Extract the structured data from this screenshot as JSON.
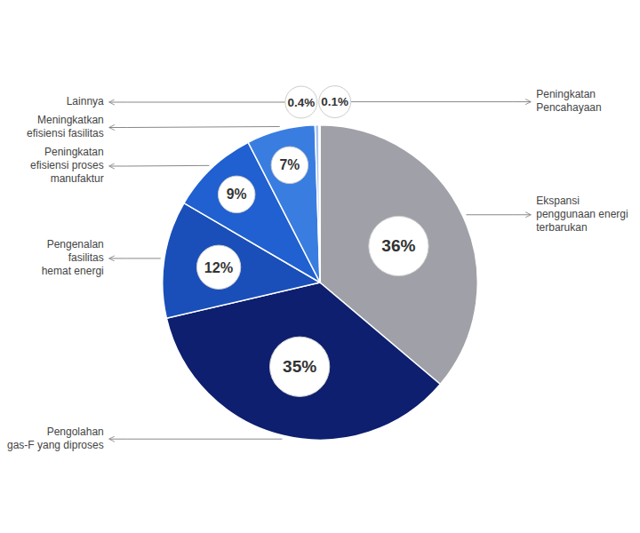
{
  "chart_data": {
    "type": "pie",
    "categories": [
      "Ekspansi\npenggunaan energi\nterbarukan",
      "Pengolahan\ngas-F yang diproses",
      "Pengenalan\nfasilitas\nhemat energi",
      "Peningkatan\nefisiensi proses\nmanufaktur",
      "Meningkatkan\nefisiensi fasilitas",
      "Lainnya",
      "Peningkatan\nPencahayaan"
    ],
    "values": [
      36,
      35,
      12,
      9,
      7,
      0.4,
      0.1
    ],
    "value_labels": [
      "36%",
      "35%",
      "12%",
      "9%",
      "7%",
      "0.4%",
      "0.1%"
    ],
    "colors": [
      "#a0a0a8",
      "#0d1f6e",
      "#1a4fba",
      "#2060d0",
      "#3a7de0",
      "#aac4ee",
      "#dce8f8"
    ],
    "data_labels": true
  }
}
